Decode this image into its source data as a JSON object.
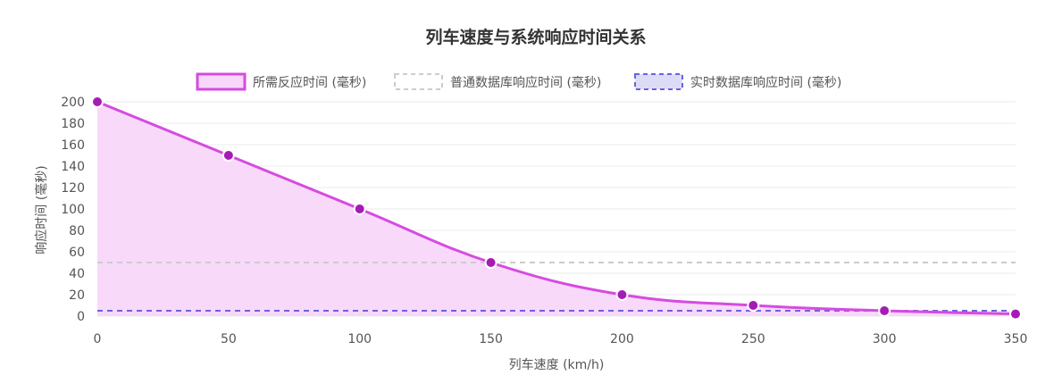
{
  "chart_data": {
    "type": "line",
    "title": "列车速度与系统响应时间关系",
    "xlabel": "列车速度 (km/h)",
    "ylabel": "响应时间 (毫秒)",
    "xlim": [
      0,
      350
    ],
    "ylim": [
      0,
      200
    ],
    "x_ticks": [
      "0",
      "50",
      "100",
      "150",
      "200",
      "250",
      "300",
      "350"
    ],
    "y_ticks": [
      "0",
      "20",
      "40",
      "60",
      "80",
      "100",
      "120",
      "140",
      "160",
      "180",
      "200"
    ],
    "grid": true,
    "legend_position": "top-center",
    "series": [
      {
        "name": "所需反应时间 (毫秒)",
        "x": [
          0,
          50,
          100,
          150,
          200,
          250,
          300,
          350
        ],
        "values": [
          200,
          150,
          100,
          50,
          20,
          10,
          5,
          2
        ],
        "style": "solid-filled",
        "color": "#d64be0",
        "point_color": "#a61bb5",
        "fill": "#f8d7fa"
      },
      {
        "name": "普通数据库响应时间 (毫秒)",
        "x": [
          0,
          350
        ],
        "values": [
          50,
          50
        ],
        "style": "dashed",
        "color": "#cccccc"
      },
      {
        "name": "实时数据库响应时间 (毫秒)",
        "x": [
          0,
          350
        ],
        "values": [
          5,
          5
        ],
        "style": "dashed",
        "color": "#6a63dd",
        "fill": "#dcdcf7"
      }
    ]
  }
}
